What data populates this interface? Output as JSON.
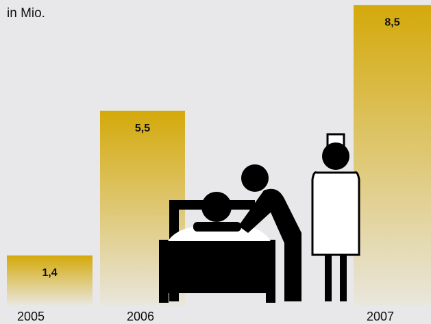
{
  "chart_data": {
    "type": "bar",
    "title": "in Mio.",
    "categories": [
      "2005",
      "2006",
      "2007"
    ],
    "values": [
      1.4,
      5.5,
      8.5
    ],
    "value_labels": [
      "1,4",
      "5,5",
      "8,5"
    ],
    "color": "#d4a90a"
  }
}
